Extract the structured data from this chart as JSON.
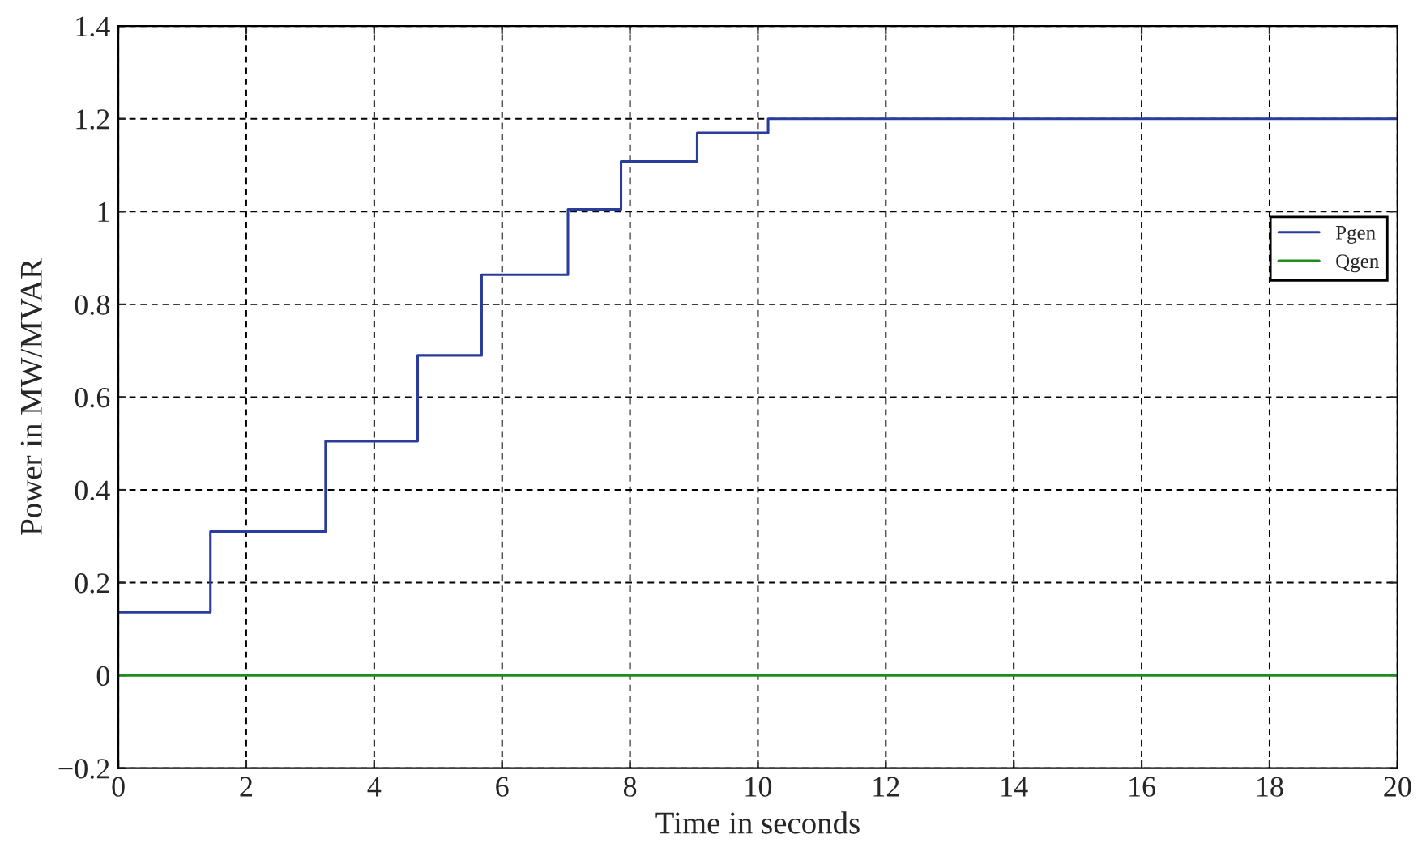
{
  "chart_data": {
    "type": "step",
    "xlabel": "Time in seconds",
    "ylabel": "Power in MW/MVAR",
    "xlim": [
      0,
      20
    ],
    "ylim": [
      -0.2,
      1.4
    ],
    "xticks": [
      0,
      2,
      4,
      6,
      8,
      10,
      12,
      14,
      16,
      18,
      20
    ],
    "yticks": [
      {
        "value": -0.2,
        "label": "−0.2"
      },
      0,
      0.2,
      0.4,
      0.6,
      0.8,
      1,
      1.2,
      1.4
    ],
    "grid": true,
    "legend": "right",
    "series": [
      {
        "name": "Pgen",
        "color": "#2a3c9c",
        "x": [
          0,
          1.44,
          3.24,
          4.68,
          5.68,
          7.03,
          7.86,
          9.05,
          10.16,
          20
        ],
        "values": [
          0.136,
          0.31,
          0.505,
          0.69,
          0.864,
          1.005,
          1.108,
          1.17,
          1.2,
          1.2
        ]
      },
      {
        "name": "Qgen",
        "color": "#1e8c1e",
        "x": [
          0,
          20
        ],
        "values": [
          0,
          0
        ]
      }
    ]
  }
}
